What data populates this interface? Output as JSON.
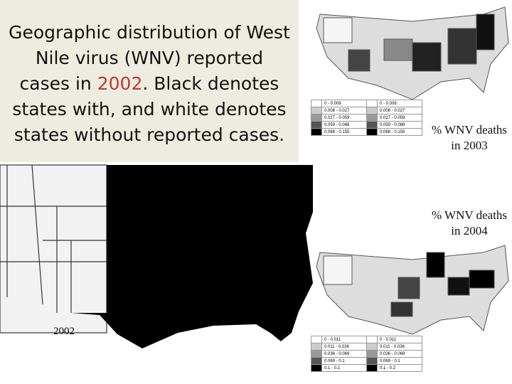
{
  "title": {
    "before": "Geographic distribution of West Nile virus (WNV) reported cases in ",
    "year": "2002",
    "after": ". Black denotes states with, and white denotes states without reported cases."
  },
  "map_2002": {
    "label": "2002"
  },
  "map_2003": {
    "caption": "% WNV deaths in 2003",
    "legend": [
      [
        "0 - 0.008",
        "0 - 0.008"
      ],
      [
        "0.008 - 0.027",
        "0.008 - 0.027"
      ],
      [
        "0.027 - 0.059",
        "0.027 - 0.059"
      ],
      [
        "0.059 - 0.088",
        "0.059 - 0.088"
      ],
      [
        "0.088 - 0.155",
        "0.088 - 0.155"
      ]
    ]
  },
  "map_2004": {
    "caption": "% WNV deaths in 2004",
    "legend": [
      [
        "0 - 0.011",
        "0 - 0.011"
      ],
      [
        "0.011 - 0.036",
        "0.011 - 0.036"
      ],
      [
        "0.036 - 0.069",
        "0.036 - 0.069"
      ],
      [
        "0.069 - 0.1",
        "0.069 - 0.1"
      ],
      [
        "0.1 - 0.2",
        "0.1 - 0.2"
      ]
    ]
  }
}
